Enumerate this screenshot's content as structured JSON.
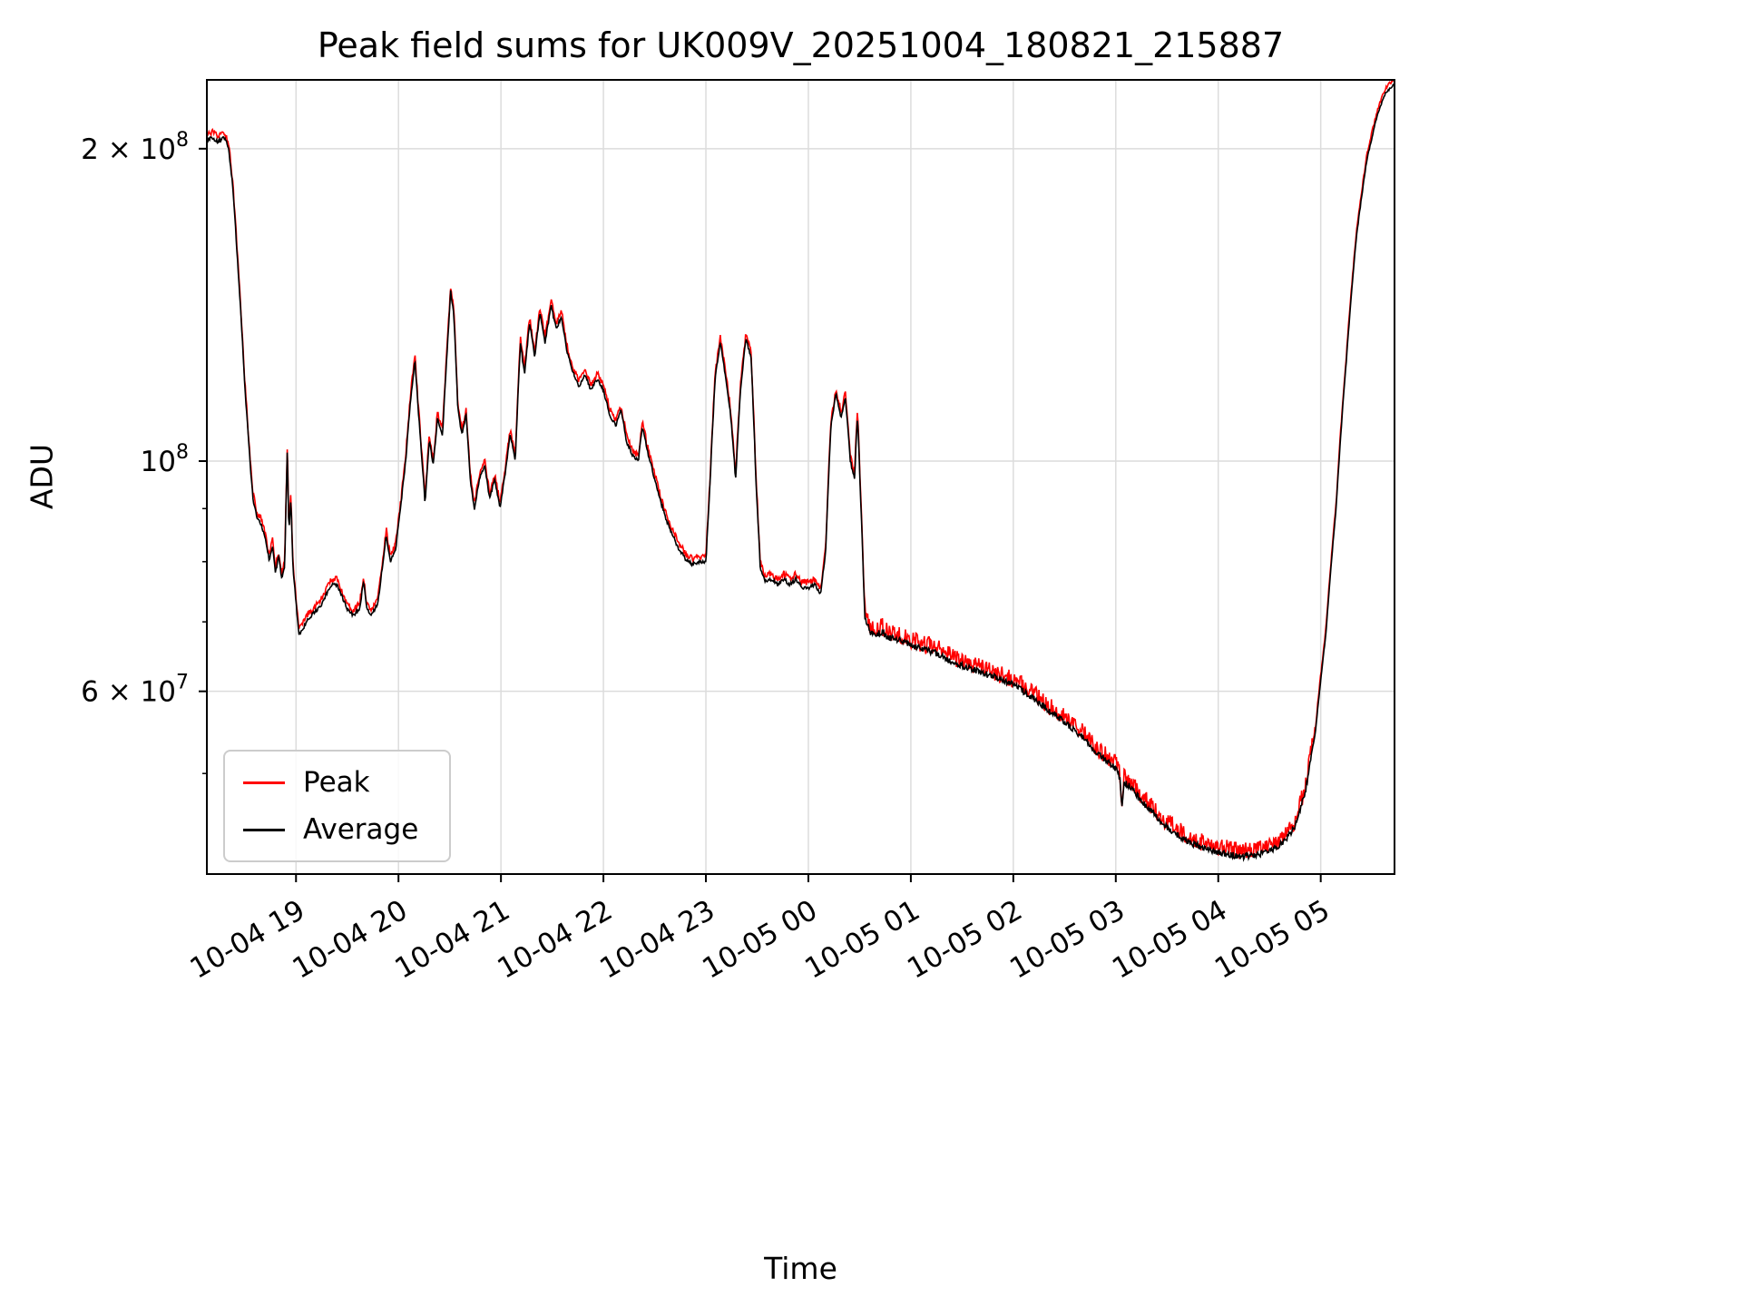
{
  "figure": {
    "title": "Peak field sums for UK009V_20251004_180821_215887",
    "xlabel": "Time",
    "ylabel": "ADU"
  },
  "legend": {
    "position": "lower left",
    "items": [
      {
        "label": "Peak",
        "color": "#ff0000"
      },
      {
        "label": "Average",
        "color": "#000000"
      }
    ]
  },
  "chart_data": {
    "type": "line",
    "title": "Peak field sums for UK009V_20251004_180821_215887",
    "xlabel": "Time",
    "ylabel": "ADU",
    "yscale": "log",
    "grid": true,
    "legend_position": "lower left",
    "x_unit": "hours since 2025-10-04 18:00",
    "value_unit_multiplier": 1000000,
    "xlim": [
      0.13,
      11.72
    ],
    "ylim": [
      40000000,
      233000000
    ],
    "x_ticks": [
      {
        "t": 1,
        "label": "10-04 19"
      },
      {
        "t": 2,
        "label": "10-04 20"
      },
      {
        "t": 3,
        "label": "10-04 21"
      },
      {
        "t": 4,
        "label": "10-04 22"
      },
      {
        "t": 5,
        "label": "10-04 23"
      },
      {
        "t": 6,
        "label": "10-05 00"
      },
      {
        "t": 7,
        "label": "10-05 01"
      },
      {
        "t": 8,
        "label": "10-05 02"
      },
      {
        "t": 9,
        "label": "10-05 03"
      },
      {
        "t": 10,
        "label": "10-05 04"
      },
      {
        "t": 11,
        "label": "10-05 05"
      }
    ],
    "y_ticks": [
      {
        "value": 200000000,
        "base": "2 × 10",
        "exp": "8"
      },
      {
        "value": 100000000,
        "base": "10",
        "exp": "8"
      },
      {
        "value": 60000000,
        "base": "6 × 10",
        "exp": "7"
      }
    ],
    "y_minor_ticks": [
      50000000,
      70000000,
      80000000,
      90000000
    ],
    "series": [
      {
        "name": "Peak",
        "color": "#ff0000"
      },
      {
        "name": "Average",
        "color": "#000000"
      }
    ],
    "keypoints_t_hours_value_1e6": [
      [
        0.13,
        204
      ],
      [
        0.18,
        205
      ],
      [
        0.24,
        203
      ],
      [
        0.3,
        205
      ],
      [
        0.34,
        201
      ],
      [
        0.38,
        185
      ],
      [
        0.44,
        150
      ],
      [
        0.5,
        118
      ],
      [
        0.55,
        100
      ],
      [
        0.58,
        92
      ],
      [
        0.62,
        88
      ],
      [
        0.66,
        87
      ],
      [
        0.7,
        84
      ],
      [
        0.74,
        80
      ],
      [
        0.77,
        83
      ],
      [
        0.8,
        78
      ],
      [
        0.83,
        81
      ],
      [
        0.86,
        77
      ],
      [
        0.89,
        79
      ],
      [
        0.915,
        103
      ],
      [
        0.93,
        85
      ],
      [
        0.95,
        92
      ],
      [
        0.97,
        79
      ],
      [
        1.0,
        73
      ],
      [
        1.03,
        68
      ],
      [
        1.07,
        69
      ],
      [
        1.12,
        70.5
      ],
      [
        1.18,
        71.5
      ],
      [
        1.24,
        72.5
      ],
      [
        1.3,
        74.5
      ],
      [
        1.34,
        76
      ],
      [
        1.4,
        76
      ],
      [
        1.45,
        74
      ],
      [
        1.5,
        72
      ],
      [
        1.56,
        71
      ],
      [
        1.62,
        72
      ],
      [
        1.66,
        76.5
      ],
      [
        1.69,
        72
      ],
      [
        1.74,
        71
      ],
      [
        1.8,
        73
      ],
      [
        1.85,
        80
      ],
      [
        1.88,
        85
      ],
      [
        1.92,
        80
      ],
      [
        1.97,
        82
      ],
      [
        2.02,
        90
      ],
      [
        2.07,
        100
      ],
      [
        2.12,
        115
      ],
      [
        2.16,
        125
      ],
      [
        2.19,
        113
      ],
      [
        2.23,
        100
      ],
      [
        2.26,
        91
      ],
      [
        2.3,
        105
      ],
      [
        2.34,
        99
      ],
      [
        2.38,
        110
      ],
      [
        2.43,
        106
      ],
      [
        2.48,
        130
      ],
      [
        2.51,
        146
      ],
      [
        2.54,
        138
      ],
      [
        2.58,
        112
      ],
      [
        2.62,
        106
      ],
      [
        2.66,
        111
      ],
      [
        2.7,
        96
      ],
      [
        2.74,
        90
      ],
      [
        2.79,
        96
      ],
      [
        2.84,
        99
      ],
      [
        2.89,
        92
      ],
      [
        2.94,
        96
      ],
      [
        2.99,
        90
      ],
      [
        3.04,
        97
      ],
      [
        3.09,
        106
      ],
      [
        3.14,
        100
      ],
      [
        3.19,
        130
      ],
      [
        3.23,
        121
      ],
      [
        3.28,
        136
      ],
      [
        3.33,
        126
      ],
      [
        3.38,
        139
      ],
      [
        3.43,
        130
      ],
      [
        3.49,
        141
      ],
      [
        3.54,
        134
      ],
      [
        3.59,
        138
      ],
      [
        3.64,
        128
      ],
      [
        3.7,
        122
      ],
      [
        3.76,
        118
      ],
      [
        3.82,
        121
      ],
      [
        3.88,
        117
      ],
      [
        3.94,
        120
      ],
      [
        4.0,
        117
      ],
      [
        4.06,
        111
      ],
      [
        4.12,
        108
      ],
      [
        4.17,
        112
      ],
      [
        4.23,
        104
      ],
      [
        4.29,
        101
      ],
      [
        4.34,
        100
      ],
      [
        4.38,
        108
      ],
      [
        4.43,
        102
      ],
      [
        4.49,
        97
      ],
      [
        4.55,
        92
      ],
      [
        4.61,
        88
      ],
      [
        4.67,
        85
      ],
      [
        4.73,
        82.5
      ],
      [
        4.8,
        80.5
      ],
      [
        4.87,
        79.5
      ],
      [
        4.93,
        80
      ],
      [
        5.0,
        80
      ],
      [
        5.04,
        95
      ],
      [
        5.09,
        120
      ],
      [
        5.14,
        130
      ],
      [
        5.19,
        121
      ],
      [
        5.24,
        111
      ],
      [
        5.29,
        96
      ],
      [
        5.34,
        118
      ],
      [
        5.39,
        131
      ],
      [
        5.44,
        126
      ],
      [
        5.49,
        95
      ],
      [
        5.53,
        79
      ],
      [
        5.58,
        76.5
      ],
      [
        5.64,
        77
      ],
      [
        5.7,
        76
      ],
      [
        5.76,
        77
      ],
      [
        5.82,
        76
      ],
      [
        5.88,
        77
      ],
      [
        5.94,
        75.5
      ],
      [
        6.0,
        75.5
      ],
      [
        6.06,
        76
      ],
      [
        6.12,
        74.5
      ],
      [
        6.17,
        82
      ],
      [
        6.22,
        108
      ],
      [
        6.27,
        116
      ],
      [
        6.32,
        110
      ],
      [
        6.36,
        115
      ],
      [
        6.41,
        100
      ],
      [
        6.45,
        96
      ],
      [
        6.48,
        111
      ],
      [
        6.51,
        92
      ],
      [
        6.55,
        71
      ],
      [
        6.6,
        68.5
      ],
      [
        6.66,
        68
      ],
      [
        6.72,
        68.5
      ],
      [
        6.78,
        67.5
      ],
      [
        6.85,
        67.5
      ],
      [
        6.92,
        67
      ],
      [
        7.0,
        66.5
      ],
      [
        7.1,
        66
      ],
      [
        7.2,
        65.5
      ],
      [
        7.3,
        65
      ],
      [
        7.4,
        64
      ],
      [
        7.5,
        63.5
      ],
      [
        7.6,
        63
      ],
      [
        7.7,
        62.5
      ],
      [
        7.8,
        62
      ],
      [
        7.9,
        61.5
      ],
      [
        8.0,
        61
      ],
      [
        8.1,
        60
      ],
      [
        8.2,
        59
      ],
      [
        8.3,
        58
      ],
      [
        8.4,
        57
      ],
      [
        8.5,
        56
      ],
      [
        8.6,
        55
      ],
      [
        8.7,
        54
      ],
      [
        8.8,
        52.5
      ],
      [
        8.9,
        51.5
      ],
      [
        9.0,
        50.5
      ],
      [
        9.04,
        49.5
      ],
      [
        9.06,
        46.5
      ],
      [
        9.08,
        49
      ],
      [
        9.15,
        48.5
      ],
      [
        9.25,
        47
      ],
      [
        9.35,
        46
      ],
      [
        9.45,
        44.8
      ],
      [
        9.55,
        44
      ],
      [
        9.65,
        43.3
      ],
      [
        9.75,
        42.8
      ],
      [
        9.85,
        42.4
      ],
      [
        9.95,
        42.1
      ],
      [
        10.05,
        41.9
      ],
      [
        10.15,
        41.7
      ],
      [
        10.25,
        41.6
      ],
      [
        10.35,
        41.7
      ],
      [
        10.45,
        41.9
      ],
      [
        10.55,
        42.3
      ],
      [
        10.65,
        43
      ],
      [
        10.75,
        44.5
      ],
      [
        10.85,
        48
      ],
      [
        10.95,
        55
      ],
      [
        11.05,
        68
      ],
      [
        11.15,
        90
      ],
      [
        11.25,
        125
      ],
      [
        11.35,
        165
      ],
      [
        11.45,
        195
      ],
      [
        11.55,
        215
      ],
      [
        11.63,
        226
      ],
      [
        11.72,
        231
      ]
    ],
    "render": {
      "samples": 1700,
      "seed": 12345,
      "peak_offset": 0.012,
      "peak_noise_normal": 0.007,
      "peak_noise_tail": 0.02,
      "peak_noise_final": 0.004,
      "avg_noise_normal": 0.004,
      "avg_noise_tail": 0.007,
      "avg_noise_final": 0.002,
      "tail_range": [
        6.53,
        10.92
      ]
    }
  }
}
